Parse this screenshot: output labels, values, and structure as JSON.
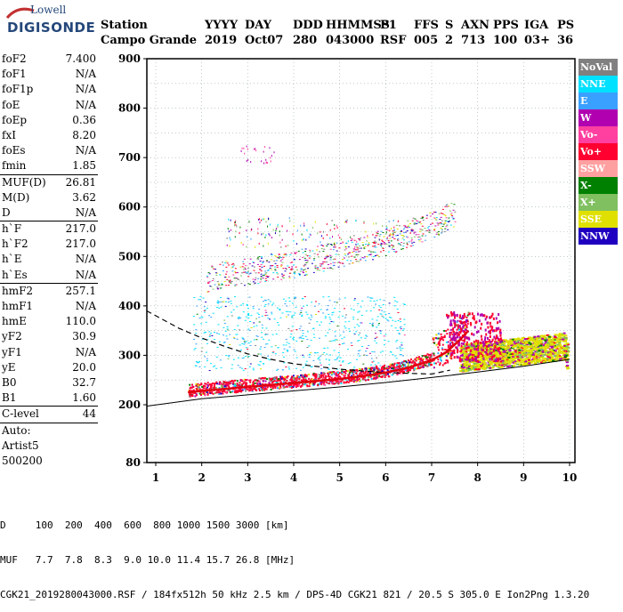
{
  "logo": {
    "line1": "Lowell",
    "line2": "DIGISONDE"
  },
  "header": {
    "labels": [
      "Station",
      "YYYY",
      "DAY",
      "DDD",
      "HHMMSS",
      "P1",
      "FFS",
      "S",
      "AXN",
      "PPS",
      "IGA",
      "PS"
    ],
    "values": [
      "Campo Grande",
      "2019",
      "Oct07",
      "280",
      "043000",
      "RSF",
      "005",
      "2",
      "713",
      "100",
      "03+",
      "36"
    ]
  },
  "params": [
    {
      "label": "foF2",
      "value": "7.400"
    },
    {
      "label": "foF1",
      "value": "N/A"
    },
    {
      "label": "foF1p",
      "value": "N/A"
    },
    {
      "label": "foE",
      "value": "N/A"
    },
    {
      "label": "foEp",
      "value": "0.36"
    },
    {
      "label": "fxI",
      "value": "8.20"
    },
    {
      "label": "foEs",
      "value": "N/A"
    },
    {
      "label": "fmin",
      "value": "1.85"
    },
    {
      "sep": true
    },
    {
      "label": "MUF(D)",
      "value": "26.81"
    },
    {
      "label": "M(D)",
      "value": "3.62"
    },
    {
      "label": "D",
      "value": "N/A"
    },
    {
      "sep": true
    },
    {
      "label": "h`F",
      "value": "217.0"
    },
    {
      "label": "h`F2",
      "value": "217.0"
    },
    {
      "label": "h`E",
      "value": "N/A"
    },
    {
      "label": "h`Es",
      "value": "N/A"
    },
    {
      "sep": true
    },
    {
      "label": "hmF2",
      "value": "257.1"
    },
    {
      "label": "hmF1",
      "value": "N/A"
    },
    {
      "label": "hmE",
      "value": "110.0"
    },
    {
      "label": "yF2",
      "value": "30.9"
    },
    {
      "label": "yF1",
      "value": "N/A"
    },
    {
      "label": "yE",
      "value": "20.0"
    },
    {
      "label": "B0",
      "value": "32.7"
    },
    {
      "label": "B1",
      "value": "1.60"
    },
    {
      "sep": true
    },
    {
      "label": "C-level",
      "value": "44"
    },
    {
      "sep": true
    },
    {
      "label": "Auto:",
      "value": ""
    },
    {
      "label": "Artist5",
      "value": ""
    },
    {
      "label": "500200",
      "value": ""
    }
  ],
  "legend": [
    {
      "label": "NoVal",
      "color": "#808080"
    },
    {
      "label": "NNE",
      "color": "#00e0ff"
    },
    {
      "label": "E",
      "color": "#3aa0ff"
    },
    {
      "label": "W",
      "color": "#b000b0"
    },
    {
      "label": "Vo-",
      "color": "#ff40a0"
    },
    {
      "label": "Vo+",
      "color": "#ff0030"
    },
    {
      "label": "SSW",
      "color": "#ffa0a0"
    },
    {
      "label": "X-",
      "color": "#008000"
    },
    {
      "label": "X+",
      "color": "#80c060"
    },
    {
      "label": "SSE",
      "color": "#e0e000"
    },
    {
      "label": "NNW",
      "color": "#2000c0"
    }
  ],
  "footer": {
    "line1": "D     100  200  400  600  800 1000 1500 3000 [km]",
    "line2": "MUF   7.7  7.8  8.3  9.0 10.0 11.4 15.7 26.8 [MHz]",
    "line3": "CGK21_2019280043000.RSF / 184fx512h 50 kHz 2.5 km / DPS-4D CGK21 821 / 20.5 S 305.0 E Ion2Png 1.3.20"
  },
  "chart_data": {
    "type": "scatter",
    "x": {
      "min": 0.8,
      "max": 10,
      "ticks": [
        1,
        2,
        3,
        4,
        5,
        6,
        7,
        8,
        9,
        10
      ]
    },
    "y": {
      "min": 80,
      "max": 900,
      "ticks": [
        80,
        200,
        300,
        400,
        500,
        600,
        700,
        800,
        900
      ]
    },
    "clusters": [
      {
        "name": "F-trace",
        "points": [
          [
            1.7,
            225
          ],
          [
            2.0,
            228
          ],
          [
            2.5,
            232
          ],
          [
            3.0,
            236
          ],
          [
            3.5,
            240
          ],
          [
            4.0,
            244
          ],
          [
            4.5,
            248
          ],
          [
            5.0,
            252
          ],
          [
            5.5,
            258
          ],
          [
            6.0,
            265
          ],
          [
            6.5,
            275
          ],
          [
            7.0,
            290
          ],
          [
            7.3,
            305
          ],
          [
            7.6,
            330
          ],
          [
            7.8,
            350
          ]
        ]
      },
      {
        "name": "second-hop",
        "points": [
          [
            2.1,
            455
          ],
          [
            2.5,
            465
          ],
          [
            3.0,
            470
          ],
          [
            3.5,
            478
          ],
          [
            4.0,
            485
          ],
          [
            4.5,
            495
          ],
          [
            5.0,
            505
          ],
          [
            5.5,
            515
          ],
          [
            6.0,
            530
          ],
          [
            6.5,
            548
          ],
          [
            7.0,
            565
          ],
          [
            7.5,
            590
          ]
        ]
      },
      {
        "name": "oblique-O",
        "points": [
          [
            1.8,
            230
          ],
          [
            2.5,
            240
          ],
          [
            3.0,
            250
          ],
          [
            4.0,
            260
          ],
          [
            5.0,
            270
          ],
          [
            6.0,
            280
          ],
          [
            7.0,
            290
          ],
          [
            8.0,
            300
          ],
          [
            8.5,
            305
          ],
          [
            9.0,
            310
          ],
          [
            9.5,
            315
          ],
          [
            9.9,
            320
          ]
        ]
      }
    ],
    "profile_curve": [
      [
        0.8,
        390
      ],
      [
        1.5,
        355
      ],
      [
        2.0,
        335
      ],
      [
        2.5,
        318
      ],
      [
        3.0,
        303
      ],
      [
        3.5,
        292
      ],
      [
        4.0,
        283
      ],
      [
        5.0,
        272
      ],
      [
        6.0,
        265
      ],
      [
        7.0,
        262
      ],
      [
        7.4,
        270
      ]
    ],
    "baseline_curve": [
      [
        0.8,
        197
      ],
      [
        2,
        212
      ],
      [
        3,
        220
      ],
      [
        4,
        228
      ],
      [
        5,
        236
      ],
      [
        6,
        245
      ],
      [
        7,
        255
      ],
      [
        8,
        266
      ],
      [
        9,
        278
      ],
      [
        10,
        292
      ]
    ]
  }
}
